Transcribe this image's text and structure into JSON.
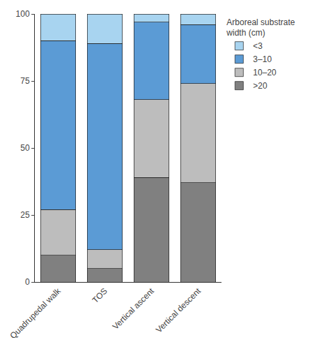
{
  "chart_data": {
    "type": "bar",
    "stacked": true,
    "categories": [
      "Quadrupedal walk",
      "TOS",
      "Vertical ascent",
      "Vertical descent"
    ],
    "series": [
      {
        "name": ">20",
        "color": "#808080",
        "values": [
          10,
          5,
          39,
          37
        ]
      },
      {
        "name": "10–20",
        "color": "#bdbdbd",
        "values": [
          17,
          7,
          29,
          37
        ]
      },
      {
        "name": "3–10",
        "color": "#5b9bd5",
        "values": [
          63,
          77,
          29,
          22
        ]
      },
      {
        "name": "<3",
        "color": "#a8d4f0",
        "values": [
          10,
          11,
          3,
          4
        ]
      }
    ],
    "legend_title": "Arboreal substrate\nwidth (cm)",
    "legend": "right",
    "ylim": [
      0,
      100
    ],
    "yticks": [
      0,
      25,
      50,
      75,
      100
    ],
    "grid": false
  }
}
